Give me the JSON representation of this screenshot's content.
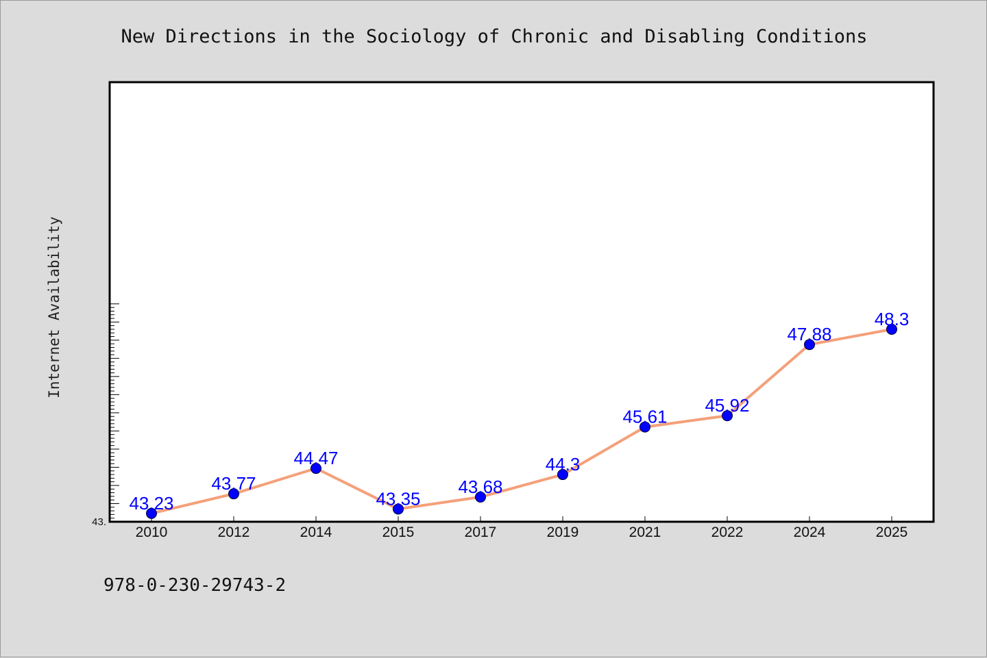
{
  "chart_data": {
    "type": "line",
    "title": "New Directions in the Sociology of Chronic and Disabling Conditions",
    "xlabel": "",
    "ylabel": "Internet Availability",
    "categories": [
      "2010",
      "2012",
      "2014",
      "2015",
      "2017",
      "2019",
      "2021",
      "2022",
      "2024",
      "2025"
    ],
    "series": [
      {
        "values": [
          43.23,
          43.77,
          44.47,
          43.35,
          43.68,
          44.3,
          45.61,
          45.92,
          47.88,
          48.3
        ],
        "labels": [
          "43.23",
          "43.77",
          "44.47",
          "43.35",
          "43.68",
          "44.3",
          "45.61",
          "45.92",
          "47.88",
          "48.3"
        ]
      }
    ],
    "ylim": [
      43.0,
      49.0
    ],
    "y_tick_label": "43.",
    "grid": false,
    "line_color": "#f4a07a",
    "marker_color": "#0000ff",
    "label_color": "#0000ff",
    "background": "#dcdcdc",
    "plot_background": "#ffffff"
  },
  "footer_text": "978-0-230-29743-2"
}
